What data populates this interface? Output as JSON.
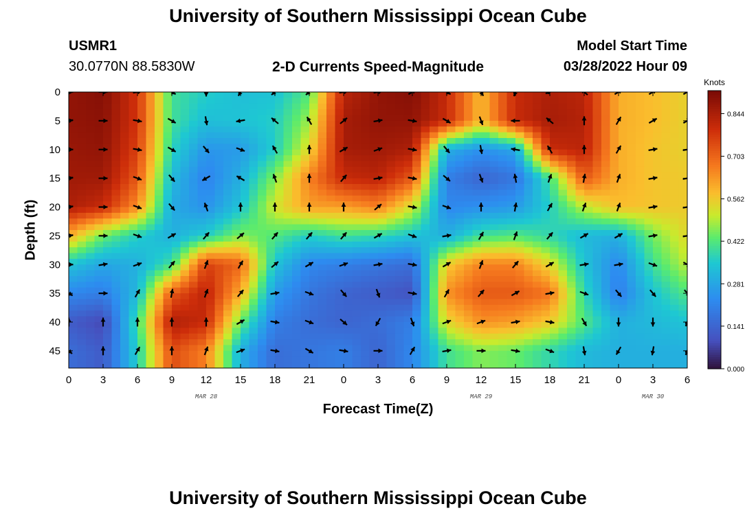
{
  "page": {
    "title": "University of Southern Mississippi Ocean Cube",
    "footer_title": "University of Southern Mississippi Ocean Cube"
  },
  "station": {
    "name": "USMR1",
    "coords": "30.0770N  88.5830W"
  },
  "model": {
    "start_label": "Model Start Time",
    "start_value": "03/28/2022 Hour 09"
  },
  "chart_data": {
    "type": "heatmap",
    "title": "2-D Currents Speed-Magnitude",
    "xlabel": "Forecast Time(Z)",
    "ylabel": "Depth (ft)",
    "x_tick_labels": [
      "0",
      "3",
      "6",
      "9",
      "12",
      "15",
      "18",
      "21",
      "0",
      "3",
      "6",
      "9",
      "12",
      "15",
      "18",
      "21",
      "0",
      "3",
      "6"
    ],
    "date_labels": [
      {
        "text": "MAR 28",
        "at_tick": 4
      },
      {
        "text": "MAR 29",
        "at_tick": 12
      },
      {
        "text": "MAR 30",
        "at_tick": 17
      }
    ],
    "y_ticks": [
      0,
      5,
      10,
      15,
      20,
      25,
      30,
      35,
      40,
      45
    ],
    "ylim": [
      0,
      48
    ],
    "xlim_hours": [
      0,
      54
    ],
    "colorbar": {
      "label": "Knots",
      "ticks": [
        "0.844",
        "0.703",
        "0.562",
        "0.422",
        "0.281",
        "0.141",
        "0.000"
      ],
      "range": [
        0.0,
        0.92
      ]
    },
    "depths_ft": [
      0,
      5,
      10,
      15,
      20,
      25,
      30,
      35,
      40,
      45
    ],
    "hours": [
      0,
      3,
      6,
      9,
      12,
      15,
      18,
      21,
      24,
      27,
      30,
      33,
      36,
      39,
      42,
      45,
      48,
      51,
      54
    ],
    "speed_knots": [
      [
        0.88,
        0.9,
        0.78,
        0.4,
        0.36,
        0.33,
        0.34,
        0.42,
        0.82,
        0.88,
        0.9,
        0.8,
        0.58,
        0.8,
        0.84,
        0.82,
        0.6,
        0.58,
        0.55
      ],
      [
        0.88,
        0.89,
        0.78,
        0.4,
        0.33,
        0.34,
        0.36,
        0.48,
        0.85,
        0.88,
        0.88,
        0.8,
        0.58,
        0.8,
        0.85,
        0.83,
        0.6,
        0.58,
        0.55
      ],
      [
        0.87,
        0.88,
        0.76,
        0.37,
        0.25,
        0.26,
        0.36,
        0.54,
        0.85,
        0.86,
        0.84,
        0.3,
        0.24,
        0.28,
        0.8,
        0.82,
        0.6,
        0.57,
        0.55
      ],
      [
        0.86,
        0.86,
        0.72,
        0.32,
        0.21,
        0.3,
        0.46,
        0.66,
        0.8,
        0.82,
        0.72,
        0.2,
        0.14,
        0.18,
        0.4,
        0.72,
        0.6,
        0.57,
        0.56
      ],
      [
        0.84,
        0.8,
        0.64,
        0.29,
        0.24,
        0.34,
        0.52,
        0.62,
        0.62,
        0.66,
        0.52,
        0.22,
        0.24,
        0.26,
        0.36,
        0.5,
        0.58,
        0.57,
        0.56
      ],
      [
        0.6,
        0.44,
        0.36,
        0.3,
        0.36,
        0.46,
        0.42,
        0.36,
        0.4,
        0.38,
        0.34,
        0.3,
        0.4,
        0.42,
        0.38,
        0.32,
        0.3,
        0.45,
        0.54
      ],
      [
        0.34,
        0.28,
        0.3,
        0.4,
        0.76,
        0.7,
        0.34,
        0.22,
        0.2,
        0.18,
        0.16,
        0.56,
        0.66,
        0.66,
        0.54,
        0.34,
        0.22,
        0.4,
        0.5
      ],
      [
        0.22,
        0.2,
        0.32,
        0.72,
        0.82,
        0.6,
        0.26,
        0.18,
        0.14,
        0.12,
        0.1,
        0.64,
        0.72,
        0.72,
        0.68,
        0.38,
        0.2,
        0.34,
        0.42
      ],
      [
        0.12,
        0.08,
        0.4,
        0.84,
        0.8,
        0.44,
        0.2,
        0.16,
        0.14,
        0.16,
        0.2,
        0.54,
        0.64,
        0.62,
        0.56,
        0.42,
        0.3,
        0.32,
        0.34
      ],
      [
        0.16,
        0.12,
        0.36,
        0.74,
        0.66,
        0.3,
        0.16,
        0.18,
        0.2,
        0.14,
        0.22,
        0.4,
        0.46,
        0.44,
        0.38,
        0.32,
        0.3,
        0.3,
        0.3
      ]
    ],
    "direction_deg": [
      [
        90,
        90,
        80,
        120,
        180,
        210,
        230,
        230,
        80,
        80,
        60,
        120,
        150,
        200,
        250,
        310,
        60,
        60,
        60
      ],
      [
        80,
        90,
        100,
        120,
        170,
        260,
        310,
        330,
        50,
        80,
        100,
        120,
        160,
        270,
        310,
        0,
        30,
        60,
        60
      ],
      [
        90,
        90,
        100,
        120,
        140,
        110,
        330,
        0,
        60,
        70,
        100,
        140,
        170,
        280,
        330,
        0,
        30,
        80,
        80
      ],
      [
        80,
        90,
        110,
        140,
        240,
        300,
        340,
        0,
        40,
        80,
        100,
        130,
        160,
        350,
        20,
        10,
        20,
        80,
        80
      ],
      [
        80,
        90,
        110,
        140,
        340,
        0,
        0,
        0,
        0,
        50,
        100,
        110,
        0,
        10,
        30,
        20,
        20,
        80,
        80
      ],
      [
        80,
        90,
        110,
        60,
        40,
        50,
        40,
        40,
        40,
        60,
        110,
        80,
        30,
        20,
        40,
        60,
        60,
        80,
        80
      ],
      [
        90,
        80,
        70,
        40,
        20,
        30,
        50,
        60,
        70,
        80,
        100,
        60,
        20,
        40,
        60,
        80,
        80,
        110,
        120
      ],
      [
        120,
        90,
        30,
        10,
        20,
        40,
        80,
        110,
        140,
        160,
        100,
        30,
        40,
        60,
        80,
        110,
        140,
        140,
        140
      ],
      [
        0,
        0,
        0,
        0,
        0,
        60,
        100,
        110,
        130,
        210,
        160,
        70,
        70,
        80,
        100,
        150,
        180,
        180,
        200
      ],
      [
        130,
        0,
        30,
        0,
        20,
        70,
        100,
        120,
        100,
        90,
        30,
        80,
        90,
        100,
        110,
        170,
        210,
        190,
        200
      ]
    ]
  }
}
